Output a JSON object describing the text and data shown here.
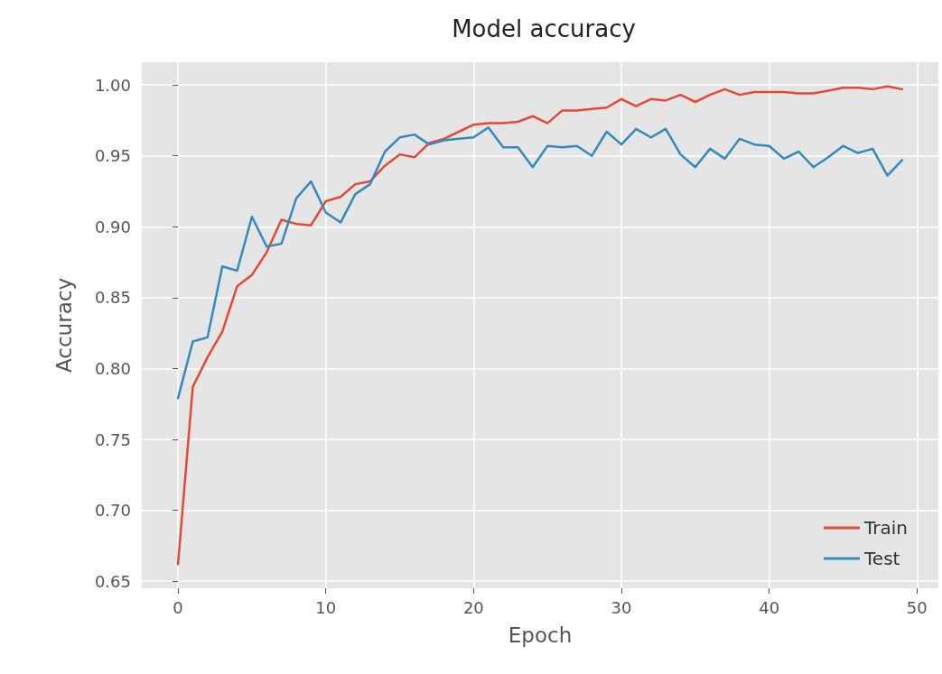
{
  "chart_data": {
    "type": "line",
    "title": "Model accuracy",
    "xlabel": "Epoch",
    "ylabel": "Accuracy",
    "x": [
      0,
      1,
      2,
      3,
      4,
      5,
      6,
      7,
      8,
      9,
      10,
      11,
      12,
      13,
      14,
      15,
      16,
      17,
      18,
      19,
      20,
      21,
      22,
      23,
      24,
      25,
      26,
      27,
      28,
      29,
      30,
      31,
      32,
      33,
      34,
      35,
      36,
      37,
      38,
      39,
      40,
      41,
      42,
      43,
      44,
      45,
      46,
      47,
      48,
      49
    ],
    "series": [
      {
        "name": "Train",
        "color": "#e24a33",
        "values": [
          0.662,
          0.787,
          0.808,
          0.826,
          0.858,
          0.866,
          0.882,
          0.905,
          0.902,
          0.901,
          0.918,
          0.921,
          0.93,
          0.932,
          0.943,
          0.951,
          0.949,
          0.959,
          0.962,
          0.967,
          0.972,
          0.973,
          0.973,
          0.974,
          0.978,
          0.973,
          0.982,
          0.982,
          0.983,
          0.984,
          0.99,
          0.985,
          0.99,
          0.989,
          0.993,
          0.988,
          0.993,
          0.997,
          0.993,
          0.995,
          0.995,
          0.995,
          0.994,
          0.994,
          0.996,
          0.998,
          0.998,
          0.997,
          0.999,
          0.997
        ]
      },
      {
        "name": "Test",
        "color": "#348abd",
        "values": [
          0.779,
          0.819,
          0.822,
          0.872,
          0.869,
          0.907,
          0.886,
          0.888,
          0.92,
          0.932,
          0.91,
          0.903,
          0.923,
          0.93,
          0.953,
          0.963,
          0.965,
          0.958,
          0.961,
          0.962,
          0.963,
          0.97,
          0.956,
          0.956,
          0.942,
          0.957,
          0.956,
          0.957,
          0.95,
          0.967,
          0.958,
          0.969,
          0.963,
          0.969,
          0.951,
          0.942,
          0.955,
          0.948,
          0.962,
          0.958,
          0.957,
          0.948,
          0.953,
          0.942,
          0.949,
          0.957,
          0.952,
          0.955,
          0.936,
          0.947
        ]
      }
    ],
    "xlim": [
      -2.45,
      51.45
    ],
    "xticks": [
      0,
      10,
      20,
      30,
      40,
      50
    ],
    "ylim": [
      0.645,
      1.016
    ],
    "yticks": [
      {
        "value": 0.65,
        "label": "0.65"
      },
      {
        "value": 0.7,
        "label": "0.70"
      },
      {
        "value": 0.75,
        "label": "0.75"
      },
      {
        "value": 0.8,
        "label": "0.80"
      },
      {
        "value": 0.85,
        "label": "0.85"
      },
      {
        "value": 0.9,
        "label": "0.90"
      },
      {
        "value": 0.95,
        "label": "0.95"
      },
      {
        "value": 1.0,
        "label": "1.00"
      }
    ],
    "grid": true,
    "legend": "bottom right",
    "marker": "none",
    "line_style": "solid"
  }
}
